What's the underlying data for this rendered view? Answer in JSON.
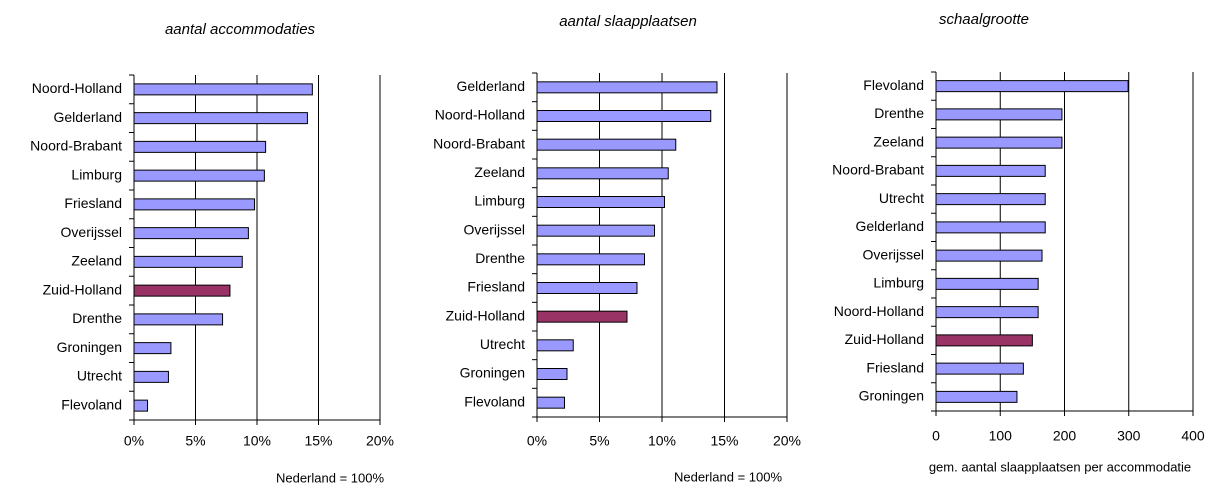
{
  "chart_data": [
    {
      "type": "bar",
      "orientation": "horizontal",
      "title": "aantal accommodaties",
      "xlabel": "Nederland = 100%",
      "categories": [
        "Noord-Holland",
        "Gelderland",
        "Noord-Brabant",
        "Limburg",
        "Friesland",
        "Overijssel",
        "Zeeland",
        "Zuid-Holland",
        "Drenthe",
        "Groningen",
        "Utrecht",
        "Flevoland"
      ],
      "values": [
        14.5,
        14.1,
        10.7,
        10.6,
        9.8,
        9.3,
        8.8,
        7.8,
        7.2,
        3.0,
        2.8,
        1.1
      ],
      "colors": [
        "#9999ff",
        "#9999ff",
        "#9999ff",
        "#9999ff",
        "#9999ff",
        "#9999ff",
        "#9999ff",
        "#993366",
        "#9999ff",
        "#9999ff",
        "#9999ff",
        "#9999ff"
      ],
      "xlim": [
        0,
        20
      ],
      "xticks": [
        {
          "value": 0,
          "label": "0%"
        },
        {
          "value": 5,
          "label": "5%"
        },
        {
          "value": 10,
          "label": "10%"
        },
        {
          "value": 15,
          "label": "15%"
        },
        {
          "value": 20,
          "label": "20%"
        }
      ],
      "grid": true
    },
    {
      "type": "bar",
      "orientation": "horizontal",
      "title": "aantal slaapplaatsen",
      "xlabel": "Nederland = 100%",
      "categories": [
        "Gelderland",
        "Noord-Holland",
        "Noord-Brabant",
        "Zeeland",
        "Limburg",
        "Overijssel",
        "Drenthe",
        "Friesland",
        "Zuid-Holland",
        "Utrecht",
        "Groningen",
        "Flevoland"
      ],
      "values": [
        14.4,
        13.9,
        11.1,
        10.5,
        10.2,
        9.4,
        8.6,
        8.0,
        7.2,
        2.9,
        2.4,
        2.2
      ],
      "colors": [
        "#9999ff",
        "#9999ff",
        "#9999ff",
        "#9999ff",
        "#9999ff",
        "#9999ff",
        "#9999ff",
        "#9999ff",
        "#993366",
        "#9999ff",
        "#9999ff",
        "#9999ff"
      ],
      "xlim": [
        0,
        20
      ],
      "xticks": [
        {
          "value": 0,
          "label": "0%"
        },
        {
          "value": 5,
          "label": "5%"
        },
        {
          "value": 10,
          "label": "10%"
        },
        {
          "value": 15,
          "label": "15%"
        },
        {
          "value": 20,
          "label": "20%"
        }
      ],
      "grid": true
    },
    {
      "type": "bar",
      "orientation": "horizontal",
      "title": "schaalgrootte",
      "xlabel": "gem. aantal slaapplaatsen per accommodatie",
      "categories": [
        "Flevoland",
        "Drenthe",
        "Zeeland",
        "Noord-Brabant",
        "Utrecht",
        "Gelderland",
        "Overijssel",
        "Limburg",
        "Noord-Holland",
        "Zuid-Holland",
        "Friesland",
        "Groningen"
      ],
      "values": [
        299,
        196,
        196,
        170,
        170,
        170,
        165,
        159,
        159,
        150,
        136,
        126
      ],
      "colors": [
        "#9999ff",
        "#9999ff",
        "#9999ff",
        "#9999ff",
        "#9999ff",
        "#9999ff",
        "#9999ff",
        "#9999ff",
        "#9999ff",
        "#993366",
        "#9999ff",
        "#9999ff"
      ],
      "xlim": [
        0,
        400
      ],
      "xticks": [
        0,
        100,
        200,
        300,
        400
      ],
      "grid": true
    }
  ]
}
